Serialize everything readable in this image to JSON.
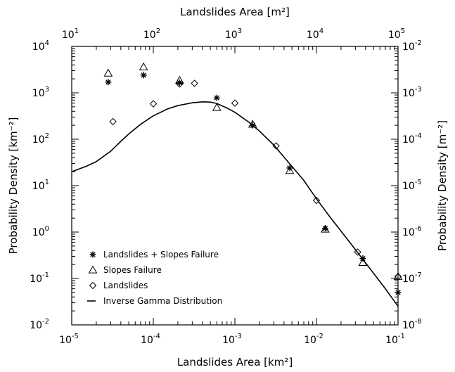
{
  "chart_data": {
    "type": "scatter",
    "xlabel": "Landslides Area [km²]",
    "ylabel": "Probability Density [km⁻²]",
    "x2label": "Landslides Area [m²]",
    "y2label": "Probability Density [m⁻²]",
    "x_scale": "log",
    "y_scale": "log",
    "xlim": [
      1e-05,
      0.1
    ],
    "ylim": [
      0.01,
      10000
    ],
    "x_ticks": [
      {
        "value": 1e-05,
        "base": "10",
        "exp": "-5"
      },
      {
        "value": 0.0001,
        "base": "10",
        "exp": "-4"
      },
      {
        "value": 0.001,
        "base": "10",
        "exp": "-3"
      },
      {
        "value": 0.01,
        "base": "10",
        "exp": "-2"
      },
      {
        "value": 0.1,
        "base": "10",
        "exp": "-1"
      }
    ],
    "y_ticks": [
      {
        "value": 0.01,
        "base": "10",
        "exp": "-2"
      },
      {
        "value": 0.1,
        "base": "10",
        "exp": "-1"
      },
      {
        "value": 1,
        "base": "10",
        "exp": "0"
      },
      {
        "value": 10,
        "base": "10",
        "exp": "1"
      },
      {
        "value": 100,
        "base": "10",
        "exp": "2"
      },
      {
        "value": 1000,
        "base": "10",
        "exp": "3"
      },
      {
        "value": 10000,
        "base": "10",
        "exp": "4"
      }
    ],
    "x2_ticks": [
      {
        "value": 1e-05,
        "base": "10",
        "exp": "1"
      },
      {
        "value": 0.0001,
        "base": "10",
        "exp": "2"
      },
      {
        "value": 0.001,
        "base": "10",
        "exp": "3"
      },
      {
        "value": 0.01,
        "base": "10",
        "exp": "4"
      },
      {
        "value": 0.1,
        "base": "10",
        "exp": "5"
      }
    ],
    "y2_ticks": [
      {
        "value": 0.01,
        "base": "10",
        "exp": "-8"
      },
      {
        "value": 0.1,
        "base": "10",
        "exp": "-7"
      },
      {
        "value": 1,
        "base": "10",
        "exp": "-6"
      },
      {
        "value": 10,
        "base": "10",
        "exp": "-5"
      },
      {
        "value": 100,
        "base": "10",
        "exp": "-4"
      },
      {
        "value": 1000,
        "base": "10",
        "exp": "-3"
      },
      {
        "value": 10000,
        "base": "10",
        "exp": "-2"
      }
    ],
    "legend_position": "bottom-left",
    "series": [
      {
        "name": "Landslides + Slopes Failure",
        "marker": "asterisk",
        "points": [
          [
            2.8e-05,
            1700
          ],
          [
            7.6e-05,
            2400
          ],
          [
            0.00021,
            1650
          ],
          [
            0.0006,
            780
          ],
          [
            0.00165,
            200
          ],
          [
            0.0047,
            24
          ],
          [
            0.0128,
            1.2
          ],
          [
            0.037,
            0.27
          ],
          [
            0.1,
            0.05
          ]
        ]
      },
      {
        "name": "Slopes Failure",
        "marker": "triangle",
        "points": [
          [
            2.8e-05,
            2650
          ],
          [
            7.6e-05,
            3600
          ],
          [
            0.00021,
            1850
          ],
          [
            0.0006,
            480
          ],
          [
            0.00165,
            210
          ],
          [
            0.0047,
            21
          ],
          [
            0.0128,
            1.15
          ],
          [
            0.037,
            0.22
          ],
          [
            0.1,
            0.11
          ]
        ]
      },
      {
        "name": "Landslides",
        "marker": "diamond",
        "points": [
          [
            3.2e-05,
            240
          ],
          [
            0.0001,
            580
          ],
          [
            0.00021,
            1550
          ],
          [
            0.00032,
            1600
          ],
          [
            0.001,
            600
          ],
          [
            0.0032,
            72
          ],
          [
            0.01,
            4.8
          ],
          [
            0.032,
            0.37
          ],
          [
            0.1,
            0.11
          ]
        ]
      },
      {
        "name": "Inverse Gamma Distribution",
        "marker": "line",
        "points": [
          [
            1e-05,
            20
          ],
          [
            1.5e-05,
            26
          ],
          [
            2e-05,
            33
          ],
          [
            3e-05,
            55
          ],
          [
            4e-05,
            90
          ],
          [
            5e-05,
            130
          ],
          [
            7e-05,
            210
          ],
          [
            0.0001,
            320
          ],
          [
            0.00015,
            450
          ],
          [
            0.0002,
            530
          ],
          [
            0.0003,
            610
          ],
          [
            0.0004,
            640
          ],
          [
            0.0005,
            630
          ],
          [
            0.0006,
            590
          ],
          [
            0.0008,
            470
          ],
          [
            0.001,
            380
          ],
          [
            0.0015,
            230
          ],
          [
            0.002,
            150
          ],
          [
            0.003,
            75
          ],
          [
            0.005,
            26
          ],
          [
            0.007,
            13
          ],
          [
            0.01,
            5.2
          ],
          [
            0.015,
            2
          ],
          [
            0.02,
            1.05
          ],
          [
            0.03,
            0.42
          ],
          [
            0.05,
            0.13
          ],
          [
            0.07,
            0.06
          ],
          [
            0.1,
            0.025
          ]
        ]
      }
    ]
  }
}
